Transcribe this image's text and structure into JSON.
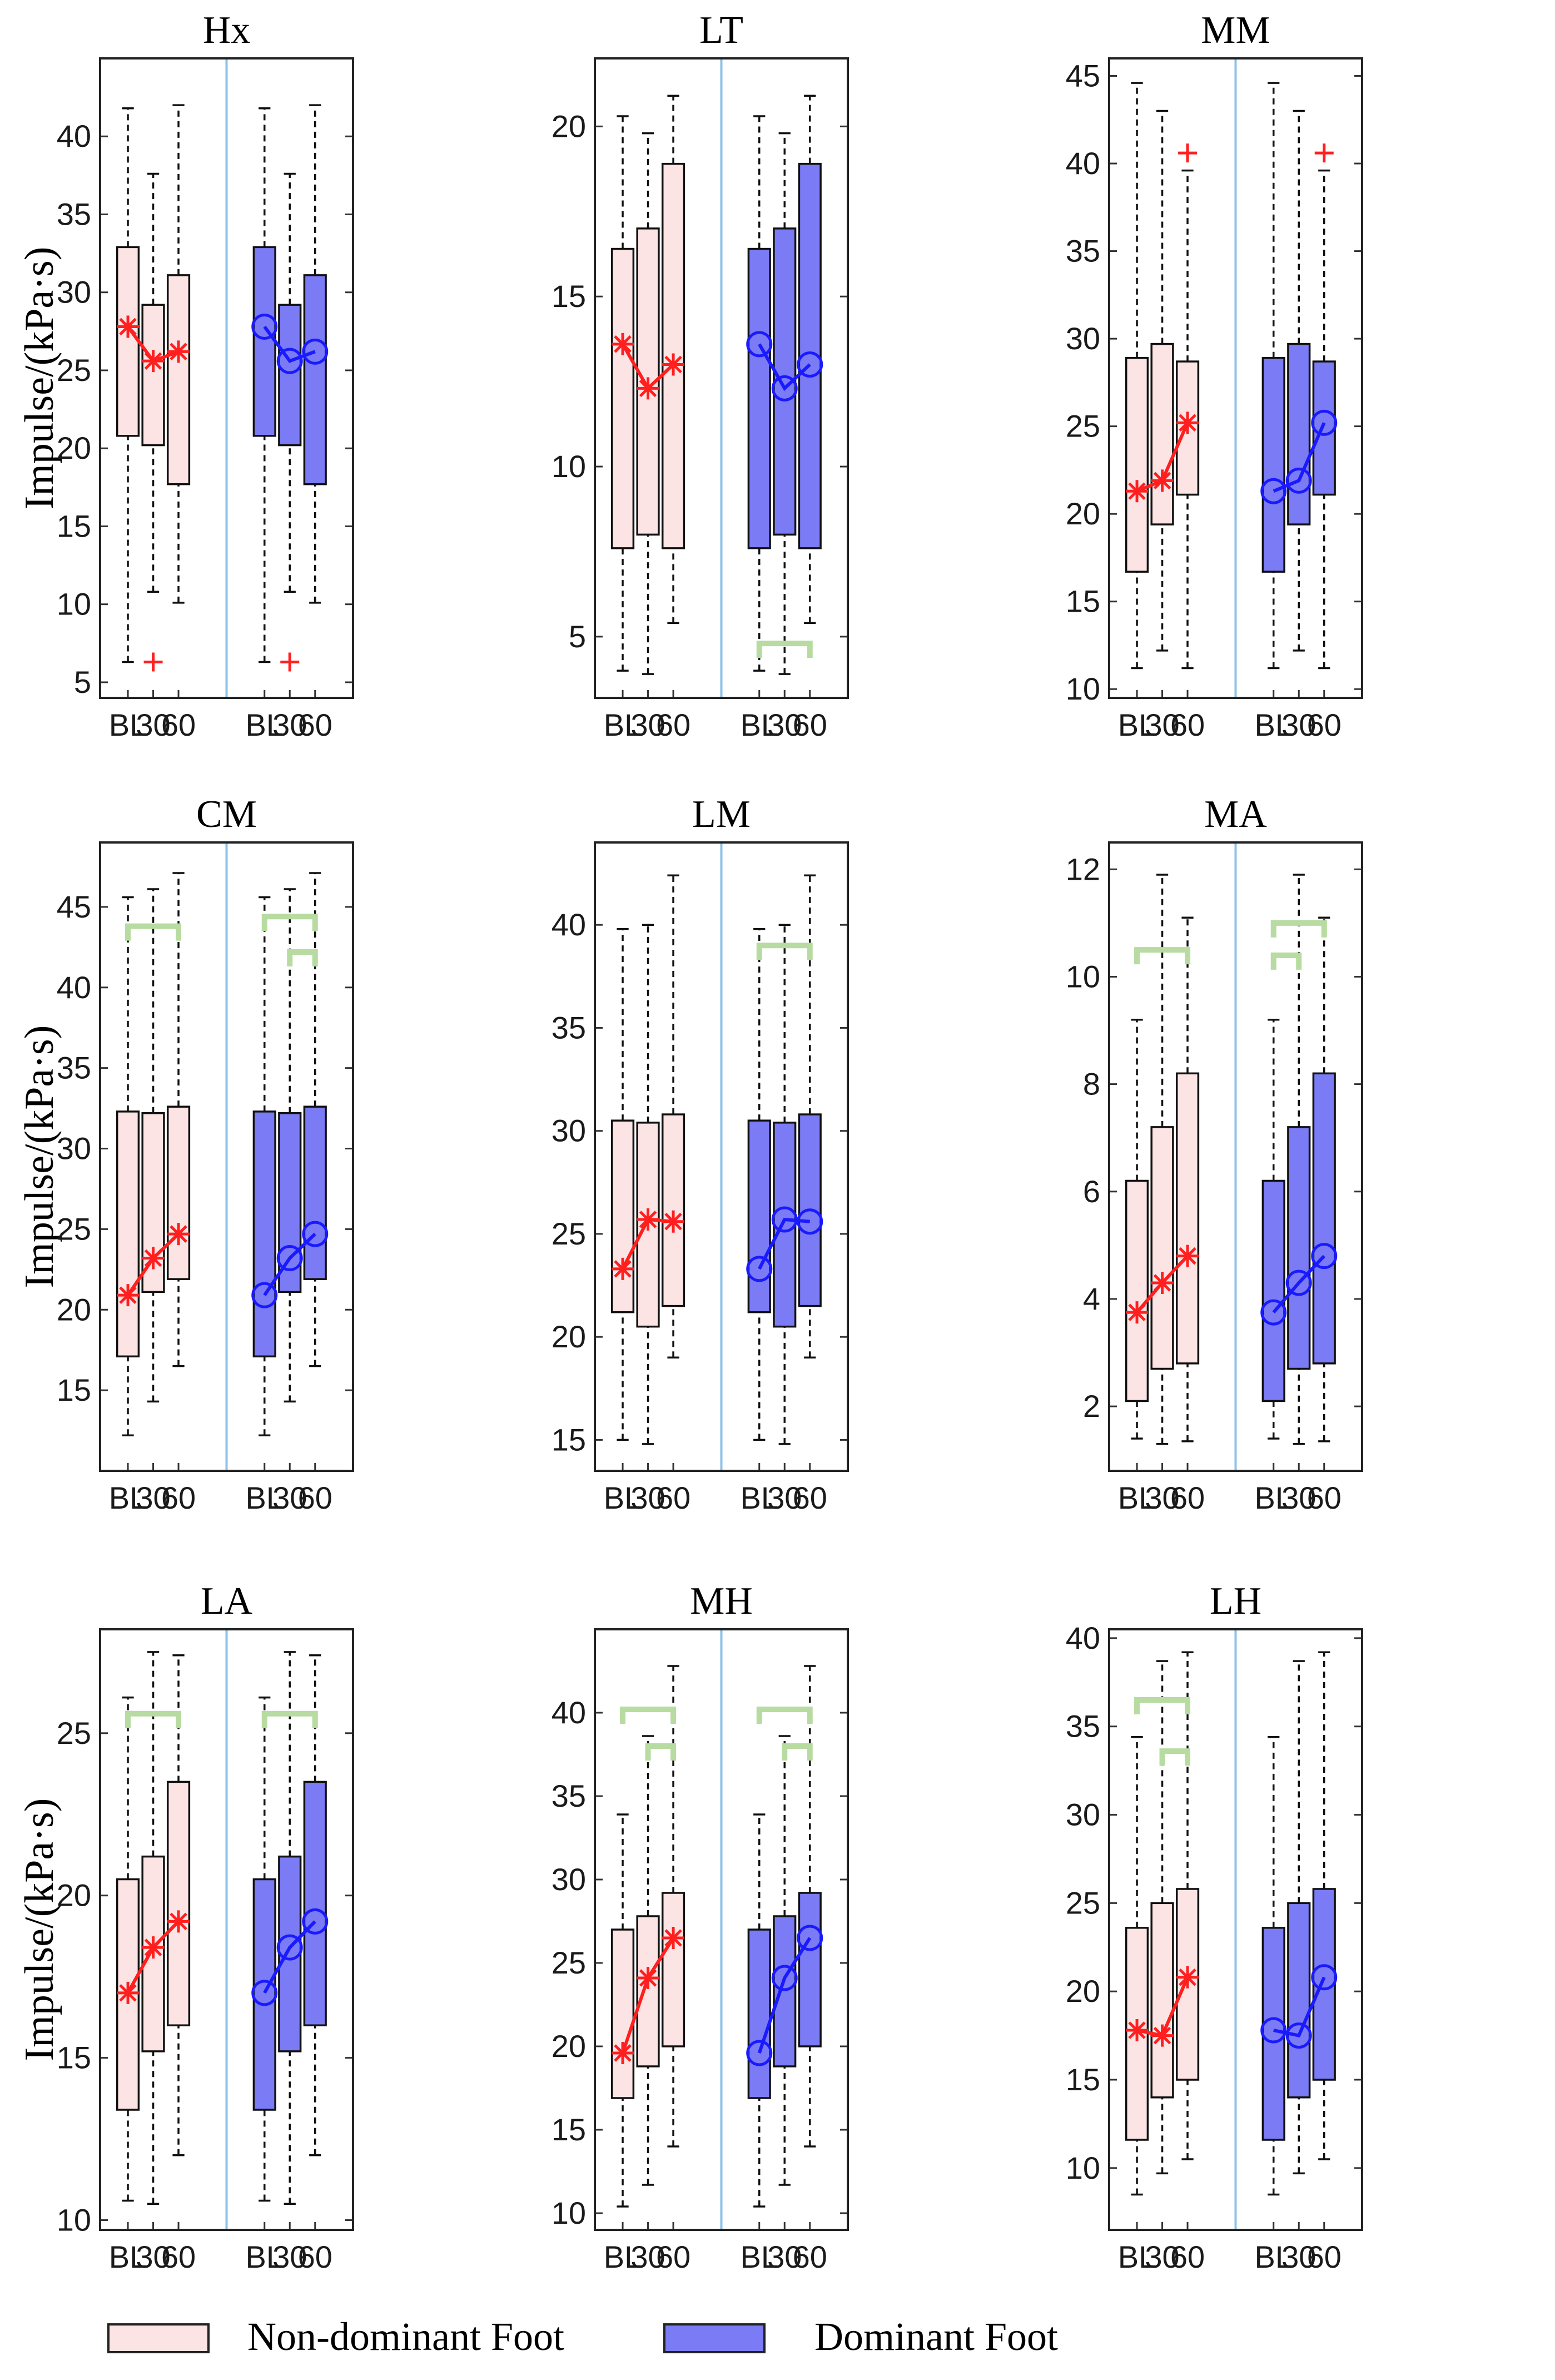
{
  "chart_data": [
    {
      "type": "box",
      "title": "Hx",
      "ylabel": "Impulse/(kPa·s)",
      "ylim": [
        4,
        45
      ],
      "yticks": [
        5,
        10,
        15,
        20,
        25,
        30,
        35,
        40
      ],
      "categories": [
        "BL",
        "30",
        "60",
        "BL",
        "30",
        "60"
      ],
      "boxes": [
        [
          6.3,
          20.8,
          27.8,
          32.9,
          41.8
        ],
        [
          10.8,
          20.2,
          25.6,
          29.2,
          37.6
        ],
        [
          10.1,
          17.7,
          26.2,
          31.1,
          42.0
        ],
        [
          6.3,
          20.8,
          27.8,
          32.9,
          41.8
        ],
        [
          10.8,
          20.2,
          25.6,
          29.2,
          37.6
        ],
        [
          10.1,
          17.7,
          26.2,
          31.1,
          42.0
        ]
      ],
      "outliers": [
        [],
        [
          6.3
        ],
        [],
        [],
        [
          6.3
        ],
        []
      ],
      "brackets": []
    },
    {
      "type": "box",
      "title": "LT",
      "ylabel": "",
      "ylim": [
        3.2,
        22
      ],
      "yticks": [
        5,
        10,
        15,
        20
      ],
      "categories": [
        "BL",
        "30",
        "60",
        "BL",
        "30",
        "60"
      ],
      "boxes": [
        [
          4.0,
          7.6,
          13.6,
          16.4,
          20.3
        ],
        [
          3.9,
          8.0,
          12.3,
          17.0,
          19.8
        ],
        [
          5.4,
          7.6,
          13.0,
          18.9,
          20.9
        ],
        [
          4.0,
          7.6,
          13.6,
          16.4,
          20.3
        ],
        [
          3.9,
          8.0,
          12.3,
          17.0,
          19.8
        ],
        [
          5.4,
          7.6,
          13.0,
          18.9,
          20.9
        ]
      ],
      "outliers": [
        [],
        [],
        [],
        [],
        [],
        []
      ],
      "brackets": [
        {
          "from": 3,
          "to": 5,
          "y": 4.8
        }
      ]
    },
    {
      "type": "box",
      "title": "MM",
      "ylabel": "",
      "ylim": [
        9.5,
        46
      ],
      "yticks": [
        10,
        15,
        20,
        25,
        30,
        35,
        40,
        45
      ],
      "categories": [
        "BL",
        "30",
        "60",
        "BL",
        "30",
        "60"
      ],
      "boxes": [
        [
          11.2,
          16.7,
          21.3,
          28.9,
          44.6
        ],
        [
          12.2,
          19.4,
          21.9,
          29.7,
          43.0
        ],
        [
          11.2,
          21.1,
          25.2,
          28.7,
          39.6
        ],
        [
          11.2,
          16.7,
          21.3,
          28.9,
          44.6
        ],
        [
          12.2,
          19.4,
          21.9,
          29.7,
          43.0
        ],
        [
          11.2,
          21.1,
          25.2,
          28.7,
          39.6
        ]
      ],
      "outliers": [
        [],
        [],
        [
          40.6
        ],
        [],
        [],
        [
          40.6
        ]
      ],
      "brackets": []
    },
    {
      "type": "box",
      "title": "CM",
      "ylabel": "Impulse/(kPa·s)",
      "ylim": [
        10,
        49
      ],
      "yticks": [
        15,
        20,
        25,
        30,
        35,
        40,
        45
      ],
      "categories": [
        "BL",
        "30",
        "60",
        "BL",
        "30",
        "60"
      ],
      "boxes": [
        [
          12.2,
          17.1,
          20.9,
          32.3,
          45.6
        ],
        [
          14.3,
          21.1,
          23.2,
          32.2,
          46.1
        ],
        [
          16.5,
          21.9,
          24.7,
          32.6,
          47.1
        ],
        [
          12.2,
          17.1,
          20.9,
          32.3,
          45.6
        ],
        [
          14.3,
          21.1,
          23.2,
          32.2,
          46.1
        ],
        [
          16.5,
          21.9,
          24.7,
          32.6,
          47.1
        ]
      ],
      "outliers": [
        [],
        [],
        [],
        [],
        [],
        []
      ],
      "brackets": [
        {
          "from": 0,
          "to": 2,
          "y": 43.8
        },
        {
          "from": 3,
          "to": 5,
          "y": 44.4
        },
        {
          "from": 4,
          "to": 5,
          "y": 42.2
        }
      ]
    },
    {
      "type": "box",
      "title": "LM",
      "ylabel": "",
      "ylim": [
        13.5,
        44
      ],
      "yticks": [
        15,
        20,
        25,
        30,
        35,
        40
      ],
      "categories": [
        "BL",
        "30",
        "60",
        "BL",
        "30",
        "60"
      ],
      "boxes": [
        [
          15.0,
          21.2,
          23.3,
          30.5,
          39.8
        ],
        [
          14.8,
          20.5,
          25.7,
          30.4,
          40.0
        ],
        [
          19.0,
          21.5,
          25.6,
          30.8,
          42.4
        ],
        [
          15.0,
          21.2,
          23.3,
          30.5,
          39.8
        ],
        [
          14.8,
          20.5,
          25.7,
          30.4,
          40.0
        ],
        [
          19.0,
          21.5,
          25.6,
          30.8,
          42.4
        ]
      ],
      "outliers": [
        [],
        [],
        [],
        [],
        [],
        []
      ],
      "brackets": [
        {
          "from": 3,
          "to": 5,
          "y": 39.0
        }
      ]
    },
    {
      "type": "box",
      "title": "MA",
      "ylabel": "",
      "ylim": [
        0.8,
        12.5
      ],
      "yticks": [
        2,
        4,
        6,
        8,
        10,
        12
      ],
      "categories": [
        "BL",
        "30",
        "60",
        "BL",
        "30",
        "60"
      ],
      "boxes": [
        [
          1.4,
          2.1,
          3.75,
          6.2,
          9.2
        ],
        [
          1.3,
          2.7,
          4.3,
          7.2,
          11.9
        ],
        [
          1.35,
          2.8,
          4.8,
          8.2,
          11.1
        ],
        [
          1.4,
          2.1,
          3.75,
          6.2,
          9.2
        ],
        [
          1.3,
          2.7,
          4.3,
          7.2,
          11.9
        ],
        [
          1.35,
          2.8,
          4.8,
          8.2,
          11.1
        ]
      ],
      "outliers": [
        [],
        [],
        [],
        [],
        [],
        []
      ],
      "brackets": [
        {
          "from": 0,
          "to": 2,
          "y": 10.5
        },
        {
          "from": 3,
          "to": 4,
          "y": 10.4
        },
        {
          "from": 3,
          "to": 5,
          "y": 11.0
        }
      ]
    },
    {
      "type": "box",
      "title": "LA",
      "ylabel": "Impulse/(kPa·s)",
      "ylim": [
        9.7,
        28.2
      ],
      "yticks": [
        10,
        15,
        20,
        25
      ],
      "categories": [
        "BL",
        "30",
        "60",
        "BL",
        "30",
        "60"
      ],
      "boxes": [
        [
          10.6,
          13.4,
          17.0,
          20.5,
          26.1
        ],
        [
          10.5,
          15.2,
          18.4,
          21.2,
          27.5
        ],
        [
          12.0,
          16.0,
          19.2,
          23.5,
          27.4
        ],
        [
          10.6,
          13.4,
          17.0,
          20.5,
          26.1
        ],
        [
          10.5,
          15.2,
          18.4,
          21.2,
          27.5
        ],
        [
          12.0,
          16.0,
          19.2,
          23.5,
          27.4
        ]
      ],
      "outliers": [
        [],
        [],
        [],
        [],
        [],
        []
      ],
      "brackets": [
        {
          "from": 0,
          "to": 2,
          "y": 25.6
        },
        {
          "from": 3,
          "to": 5,
          "y": 25.6
        }
      ]
    },
    {
      "type": "box",
      "title": "MH",
      "ylabel": "",
      "ylim": [
        9,
        45
      ],
      "yticks": [
        10,
        15,
        20,
        25,
        30,
        35,
        40
      ],
      "categories": [
        "BL",
        "30",
        "60",
        "BL",
        "30",
        "60"
      ],
      "boxes": [
        [
          10.4,
          16.9,
          19.6,
          27.0,
          33.9
        ],
        [
          11.7,
          18.8,
          24.1,
          27.8,
          38.6
        ],
        [
          14.0,
          20.0,
          26.5,
          29.2,
          42.8
        ],
        [
          10.4,
          16.9,
          19.6,
          27.0,
          33.9
        ],
        [
          11.7,
          18.8,
          24.1,
          27.8,
          38.6
        ],
        [
          14.0,
          20.0,
          26.5,
          29.2,
          42.8
        ]
      ],
      "outliers": [
        [],
        [],
        [],
        [],
        [],
        []
      ],
      "brackets": [
        {
          "from": 0,
          "to": 2,
          "y": 40.2
        },
        {
          "from": 1,
          "to": 2,
          "y": 38.0
        },
        {
          "from": 3,
          "to": 5,
          "y": 40.2
        },
        {
          "from": 4,
          "to": 5,
          "y": 38.0
        }
      ]
    },
    {
      "type": "box",
      "title": "LH",
      "ylabel": "",
      "ylim": [
        6.5,
        40.5
      ],
      "yticks": [
        10,
        15,
        20,
        25,
        30,
        35,
        40
      ],
      "categories": [
        "BL",
        "30",
        "60",
        "BL",
        "30",
        "60"
      ],
      "boxes": [
        [
          8.5,
          11.6,
          17.8,
          23.6,
          34.4
        ],
        [
          9.7,
          14.0,
          17.5,
          25.0,
          38.7
        ],
        [
          10.5,
          15.0,
          20.8,
          25.8,
          39.2
        ],
        [
          8.5,
          11.6,
          17.8,
          23.6,
          34.4
        ],
        [
          9.7,
          14.0,
          17.5,
          25.0,
          38.7
        ],
        [
          10.5,
          15.0,
          20.8,
          25.8,
          39.2
        ]
      ],
      "outliers": [
        [],
        [],
        [],
        [],
        [],
        []
      ],
      "brackets": [
        {
          "from": 0,
          "to": 2,
          "y": 36.5
        },
        {
          "from": 1,
          "to": 2,
          "y": 33.6
        }
      ]
    }
  ],
  "legend": {
    "nondominant": "Non-dominant Foot",
    "dominant": "Dominant Foot"
  },
  "colors": {
    "nondominant_fill": "#fde4e4",
    "dominant_fill": "#7b7bf5",
    "nondominant_line": "#ff1f1f",
    "dominant_line": "#1a1aff",
    "bracket": "#b7dba0",
    "divider": "#8cc2e8"
  }
}
